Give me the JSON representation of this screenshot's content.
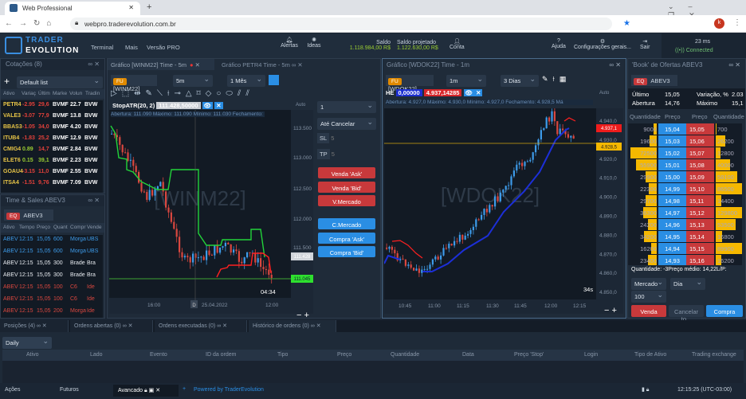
{
  "browser": {
    "tab_title": "Web Professional",
    "url": "webpro.traderevolution.com.br"
  },
  "header": {
    "logo_top": "TRADER",
    "logo_bottom": "EVOLUTION",
    "nav": [
      "Terminal",
      "Mais",
      "Versão PRO"
    ],
    "alerts": "Alertas",
    "ideas": "Ideas",
    "saldo_label": "Saldo",
    "saldo": "1.118.984,00 R$",
    "projetado_label": "Saldo projetado",
    "projetado": "1.122.630,00 R$",
    "conta": "Conta",
    "ajuda": "Ajuda",
    "config": "Configurações gerais...",
    "sair": "Sair",
    "latency": "23 ms",
    "status": "Connected"
  },
  "quotes": {
    "title": "Cotações  (8)",
    "list": "Default list",
    "columns": [
      "Ativo",
      "Variaç",
      "Últim",
      "Marke",
      "Volun",
      "Tradin"
    ],
    "rows": [
      [
        "PETR4",
        "-2.95",
        "29,6",
        "BVMF",
        "22.7",
        "BVW"
      ],
      [
        "VALE3",
        "-3.07",
        "77,9",
        "BVMF",
        "13.8",
        "BVW"
      ],
      [
        "BBAS3",
        "-1.05",
        "34,0",
        "BVMF",
        "4.20",
        "BVW"
      ],
      [
        "ITUB4",
        "-1.83",
        "25,2",
        "BVMF",
        "12.9",
        "BVW"
      ],
      [
        "CMIG4",
        "0.89",
        "14,7",
        "BVMF",
        "2.84",
        "BVW"
      ],
      [
        "ELET6",
        "0.15",
        "39,1",
        "BVMF",
        "2.23",
        "BVW"
      ],
      [
        "GOAU4",
        "-3.15",
        "11,0",
        "BVMF",
        "2.55",
        "BVW"
      ],
      [
        "ITSA4",
        "-1.51",
        "9,76",
        "BVMF",
        "7.09",
        "BVW"
      ]
    ]
  },
  "time_sales": {
    "title": "Time & Sales ABEV3",
    "tag": "EQ",
    "symbol": "ABEV3",
    "columns": [
      "Ativo",
      "Tempo",
      "Preço",
      "Quant",
      "Compr",
      "Vende"
    ],
    "rows": [
      [
        "ABEV",
        "12:15",
        "15,05",
        "600",
        "Morga",
        "UBS",
        "#3d9be9"
      ],
      [
        "ABEV",
        "12:15",
        "15,05",
        "600",
        "Morga",
        "UBS",
        "#3d9be9"
      ],
      [
        "ABEV",
        "12:15",
        "15,05",
        "300",
        "Brade",
        "Bra",
        "#e6eaef"
      ],
      [
        "ABEV",
        "12:15",
        "15,05",
        "300",
        "Brade",
        "Bra",
        "#e6eaef"
      ],
      [
        "ABEV",
        "12:15",
        "15,05",
        "100",
        "C6",
        "Ide",
        "#d9473f"
      ],
      [
        "ABEV",
        "12:15",
        "15,05",
        "100",
        "C6",
        "Ide",
        "#d9473f"
      ],
      [
        "ABEV",
        "12:15",
        "15,05",
        "200",
        "Morga",
        "Ide",
        "#d9473f"
      ]
    ]
  },
  "chart1": {
    "tab1": "Gráfico [WINM22] Time - 5m",
    "tab2": "Gráfico PETR4 Time - 5m",
    "tag": "FU",
    "symbol": "[WINM22]",
    "interval": "5m",
    "range": "1 Mês",
    "indicator": "StopATR(20, 2)",
    "indicator_value": "111.428,50000",
    "ohlc": "Abertura: 111.090   Máximo: 111.090   Mínimo: 111.030   Fechamento:",
    "auto": "Auto",
    "watermark": "[WINM22]",
    "price_ticks": [
      "113.500",
      "113.000",
      "112.500",
      "112.000",
      "111.500"
    ],
    "price_marker_gray": "111.428",
    "price_marker_green": "111.045",
    "time_ticks": [
      "16:00",
      "25.04.2022",
      "12:00"
    ],
    "day_marker": "D",
    "countdown": "04:34"
  },
  "order_panel": {
    "quantity": "1",
    "validity": "Até Cancelar",
    "sl_label": "SL",
    "sl": "5",
    "tp_label": "TP",
    "tp": "5",
    "buttons_sell": [
      "Venda 'Ask'",
      "Venda 'Bid'",
      "V.Mercado"
    ],
    "buttons_buy": [
      "C.Mercado",
      "Compra 'Ask'",
      "Compra 'Bid'"
    ]
  },
  "chart2": {
    "title": "Gráfico [WDOK22] Time - 1m",
    "tag": "FU",
    "symbol": "[WDOK22]",
    "interval": "1m",
    "range": "3 Dias",
    "indicator": "HE",
    "val_blue": "0,00000",
    "val_red": "4.937,14285",
    "ohlc": "Abertura: 4.927,0   Máximo: 4.930,0   Mínimo: 4.927,0   Fechamento: 4.928,5   Má",
    "auto": "Auto",
    "watermark": "[WDOK22]",
    "price_ticks": [
      "4.940,0",
      "4.930,0",
      "4.920,0",
      "4.910,0",
      "4.900,0",
      "4.890,0",
      "4.880,0",
      "4.870,0",
      "4.860,0",
      "4.850,0"
    ],
    "marker_red": "4.937,1",
    "marker_yellow": "4.928,5",
    "time_ticks": [
      "10:45",
      "11:00",
      "11:15",
      "11:30",
      "11:45",
      "12:00",
      "12:15"
    ],
    "countdown": "34s"
  },
  "book": {
    "title": "'Book' de Ofertas ABEV3",
    "tag": "EQ",
    "symbol": "ABEV3",
    "ultimo_label": "Último",
    "ultimo": "15,05",
    "variacao_label": "Variação, %",
    "variacao": "2.03",
    "abertura_label": "Abertura",
    "abertura": "14,76",
    "maximo_label": "Máximo",
    "maximo": "15,1",
    "columns": [
      "Quantidade",
      "Preço",
      "Preço",
      "Quantidade"
    ],
    "rows": [
      [
        "9000",
        "15,04",
        "15,05",
        "700"
      ],
      [
        "19600",
        "15,03",
        "15,06",
        "26200"
      ],
      [
        "72500",
        "15,02",
        "15,07",
        "12800"
      ],
      [
        "55900",
        "15,01",
        "15,08",
        "40000"
      ],
      [
        "29900",
        "15,00",
        "15,09",
        "58100"
      ],
      [
        "22300",
        "14,99",
        "15,10",
        "86500"
      ],
      [
        "29700",
        "14,98",
        "15,11",
        "14400"
      ],
      [
        "36300",
        "14,97",
        "15,12",
        "129800"
      ],
      [
        "24200",
        "14,96",
        "15,13",
        "53500"
      ],
      [
        "34200",
        "14,95",
        "15,14",
        "16800"
      ],
      [
        "16200",
        "14,94",
        "15,15",
        "89900"
      ],
      [
        "23400",
        "14,93",
        "15,16",
        "16200"
      ]
    ],
    "summary": "Quantidade:   -3Preço médio:   14,22L/P:",
    "order_type": "Mercado",
    "tif": "Dia",
    "qty": "100",
    "sell": "Venda",
    "cancel": "Cancelar to...",
    "buy": "Compra"
  },
  "bottom": {
    "tabs": [
      "Posições  (4)",
      "Ordens abertas  (0)",
      "Ordens executadas  (0)",
      "Histórico de ordens  (0)"
    ],
    "period": "Daily",
    "columns": [
      "Ativo",
      "Lado",
      "Evento",
      "ID da ordem",
      "Tipo",
      "Preço",
      "Quantidade",
      "Data",
      "Preço 'Stop'",
      "Login",
      "Tipo de Ativo",
      "Trading exchange"
    ]
  },
  "footer": {
    "workspaces": [
      "Ações",
      "Futuros",
      "Avancado"
    ],
    "powered": "Powered by TraderEvolution",
    "clock": "12:15:25 (UTC-03:00)"
  },
  "colors": {
    "buy": "#2a8ee4",
    "sell": "#c8393b",
    "book_volume": "#f5b800",
    "positive": "#9acd32",
    "negative": "#e0403a",
    "symbol": "#e8c547"
  }
}
